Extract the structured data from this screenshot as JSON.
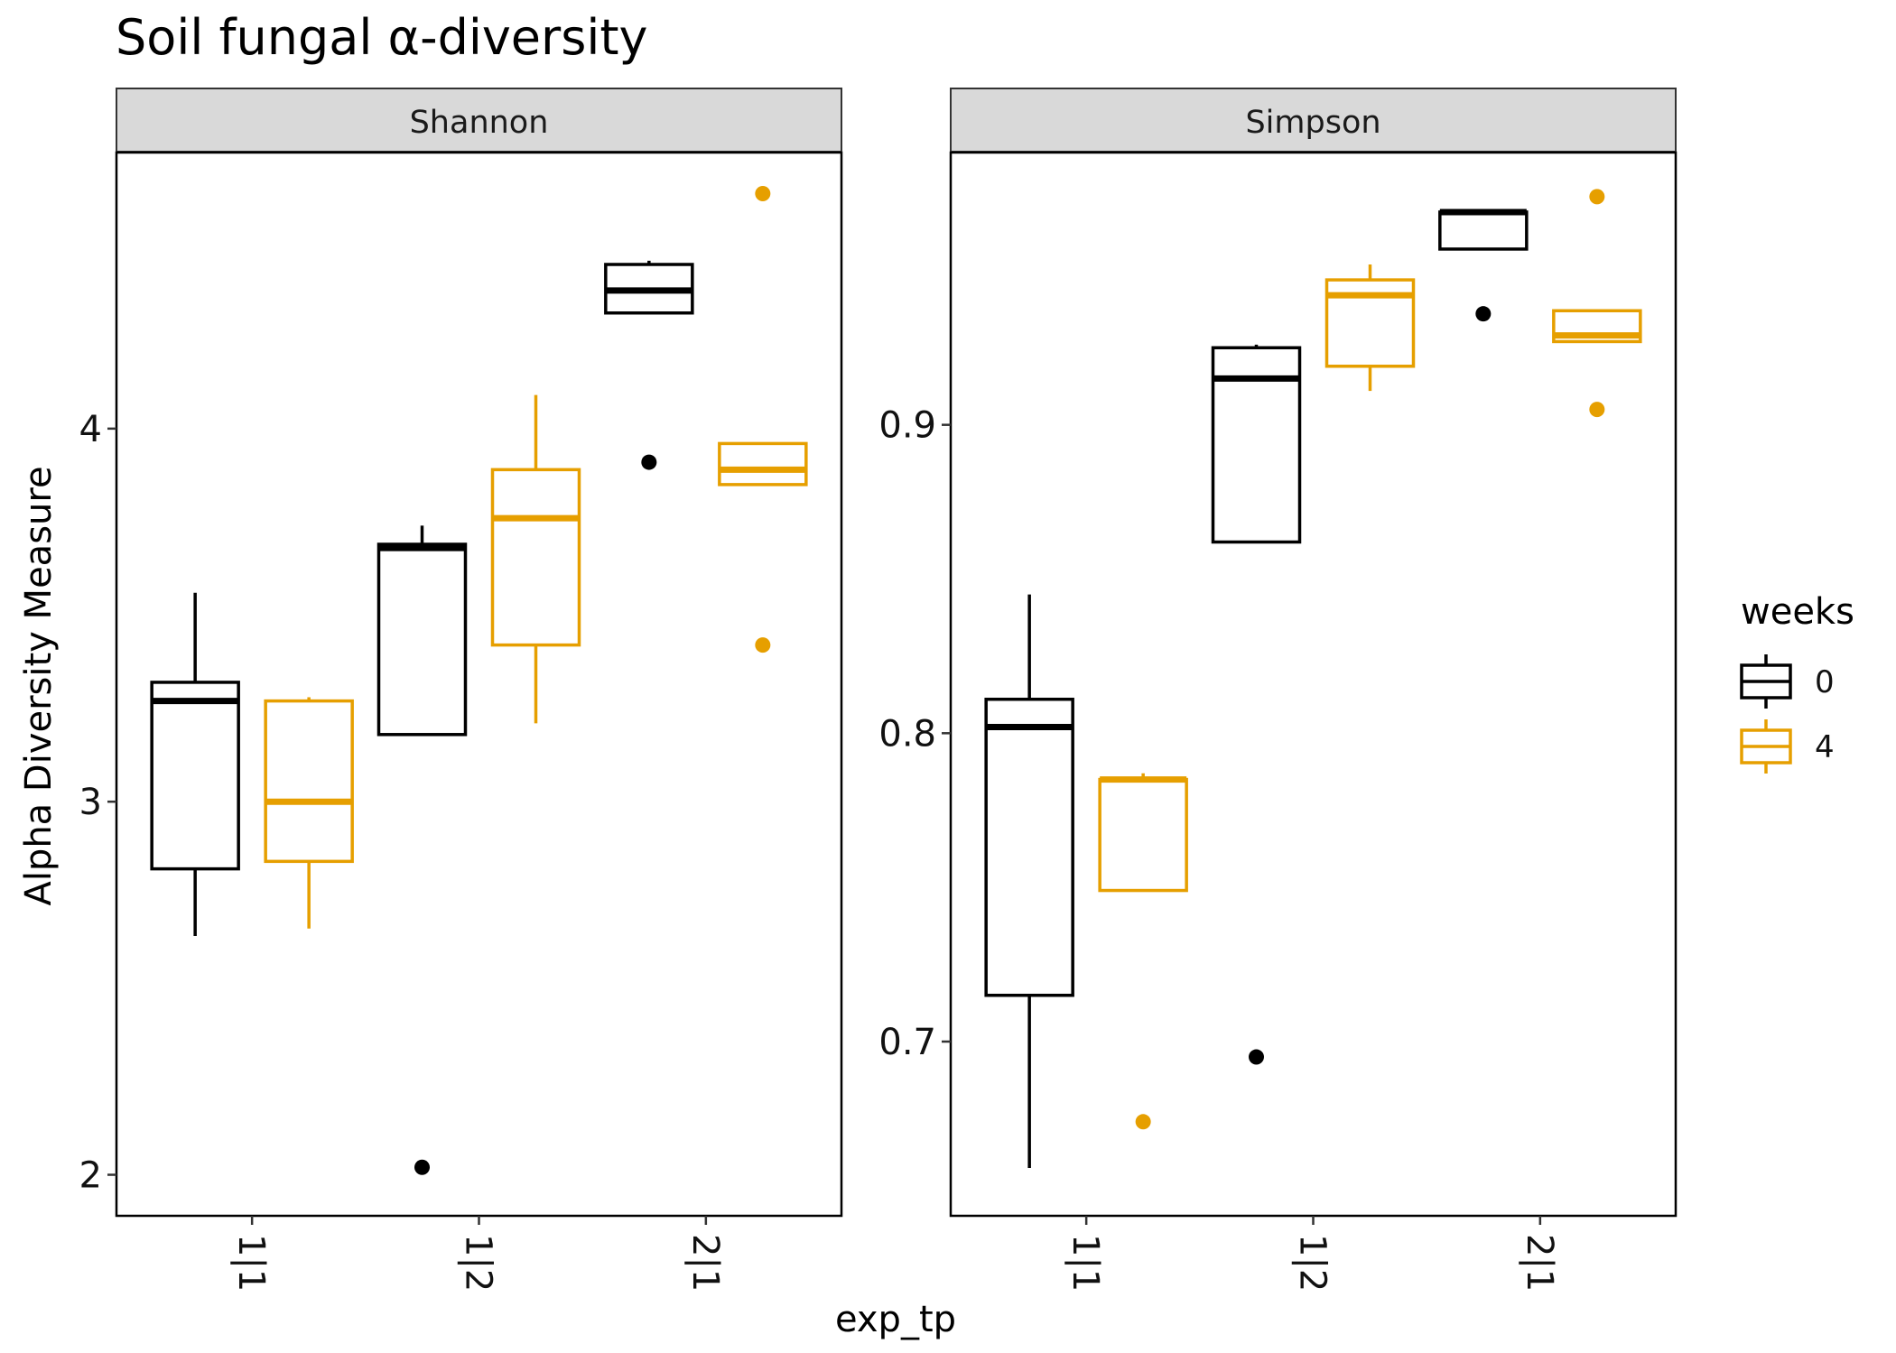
{
  "title": "Soil fungal α-diversity",
  "colors": {
    "week0": "#000000",
    "week4": "#E69F00",
    "strip_fill": "#D9D9D9",
    "panel_border": "#333333"
  },
  "chart_data": [
    {
      "type": "box",
      "facet": "Shannon",
      "categories": [
        "1|1",
        "1|2",
        "2|1"
      ],
      "xlabel": "exp_tp",
      "ylabel": "Alpha Diversity Measure",
      "ylim": [
        1.89,
        4.74
      ],
      "yticks": [
        2,
        3,
        4
      ],
      "series": [
        {
          "name": "0",
          "color": "#000000",
          "boxes": [
            {
              "category": "1|1",
              "low": 2.64,
              "q1": 2.82,
              "median": 3.27,
              "q3": 3.32,
              "high": 3.56,
              "outliers": []
            },
            {
              "category": "1|2",
              "low": 3.18,
              "q1": 3.18,
              "median": 3.68,
              "q3": 3.69,
              "high": 3.74,
              "outliers": [
                2.02
              ]
            },
            {
              "category": "2|1",
              "low": 4.31,
              "q1": 4.31,
              "median": 4.37,
              "q3": 4.44,
              "high": 4.45,
              "outliers": [
                3.91
              ]
            }
          ]
        },
        {
          "name": "4",
          "color": "#E69F00",
          "boxes": [
            {
              "category": "1|1",
              "low": 2.66,
              "q1": 2.84,
              "median": 3.0,
              "q3": 3.27,
              "high": 3.28,
              "outliers": []
            },
            {
              "category": "1|2",
              "low": 3.21,
              "q1": 3.42,
              "median": 3.76,
              "q3": 3.89,
              "high": 4.09,
              "outliers": []
            },
            {
              "category": "2|1",
              "low": 3.85,
              "q1": 3.85,
              "median": 3.89,
              "q3": 3.96,
              "high": 3.96,
              "outliers": [
                4.63,
                3.42
              ]
            }
          ]
        }
      ]
    },
    {
      "type": "box",
      "facet": "Simpson",
      "categories": [
        "1|1",
        "1|2",
        "2|1"
      ],
      "xlabel": "exp_tp",
      "ylabel": "Alpha Diversity Measure",
      "ylim": [
        0.6435,
        0.9883
      ],
      "yticks": [
        0.7,
        0.8,
        0.9
      ],
      "series": [
        {
          "name": "0",
          "color": "#000000",
          "boxes": [
            {
              "category": "1|1",
              "low": 0.659,
              "q1": 0.715,
              "median": 0.802,
              "q3": 0.811,
              "high": 0.845,
              "outliers": []
            },
            {
              "category": "1|2",
              "low": 0.862,
              "q1": 0.862,
              "median": 0.915,
              "q3": 0.925,
              "high": 0.926,
              "outliers": [
                0.695
              ]
            },
            {
              "category": "2|1",
              "low": 0.957,
              "q1": 0.957,
              "median": 0.969,
              "q3": 0.969,
              "high": 0.97,
              "outliers": [
                0.936
              ]
            }
          ]
        },
        {
          "name": "4",
          "color": "#E69F00",
          "boxes": [
            {
              "category": "1|1",
              "low": 0.749,
              "q1": 0.749,
              "median": 0.785,
              "q3": 0.785,
              "high": 0.787,
              "outliers": [
                0.674
              ]
            },
            {
              "category": "1|2",
              "low": 0.911,
              "q1": 0.919,
              "median": 0.942,
              "q3": 0.947,
              "high": 0.952,
              "outliers": []
            },
            {
              "category": "2|1",
              "low": 0.927,
              "q1": 0.927,
              "median": 0.929,
              "q3": 0.937,
              "high": 0.937,
              "outliers": [
                0.974,
                0.905
              ]
            }
          ]
        }
      ]
    }
  ],
  "legend": {
    "title": "weeks",
    "items": [
      "0",
      "4"
    ]
  }
}
